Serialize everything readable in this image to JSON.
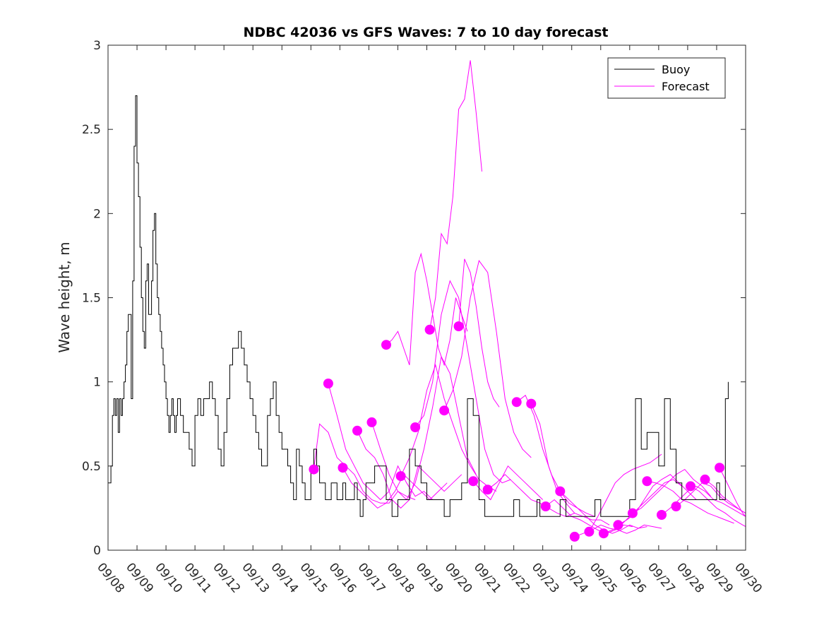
{
  "chart_data": {
    "type": "line",
    "title": "NDBC 42036 vs GFS Waves: 7 to 10 day forecast",
    "xlabel": "",
    "ylabel": "Wave height, m",
    "xlim": [
      0,
      22
    ],
    "ylim": [
      0,
      3
    ],
    "x_tick_labels": [
      "09/08",
      "09/09",
      "09/10",
      "09/11",
      "09/12",
      "09/13",
      "09/14",
      "09/15",
      "09/16",
      "09/17",
      "09/18",
      "09/19",
      "09/20",
      "09/21",
      "09/22",
      "09/23",
      "09/24",
      "09/25",
      "09/26",
      "09/27",
      "09/28",
      "09/29",
      "09/30"
    ],
    "y_ticks": [
      0,
      0.5,
      1,
      1.5,
      2,
      2.5,
      3
    ],
    "y_tick_labels": [
      "0",
      "0.5",
      "1",
      "1.5",
      "2",
      "2.5",
      "3"
    ],
    "legend": {
      "position": "top-right",
      "entries": [
        {
          "label": "Buoy",
          "color": "#000000"
        },
        {
          "label": "Forecast",
          "color": "#ff00ff"
        }
      ]
    },
    "buoy": {
      "name": "Buoy",
      "color": "#000000",
      "x": [
        0,
        0.1,
        0.15,
        0.2,
        0.25,
        0.3,
        0.35,
        0.4,
        0.45,
        0.5,
        0.55,
        0.6,
        0.65,
        0.7,
        0.8,
        0.85,
        0.9,
        0.95,
        1.0,
        1.05,
        1.1,
        1.15,
        1.2,
        1.25,
        1.3,
        1.35,
        1.4,
        1.5,
        1.55,
        1.6,
        1.65,
        1.7,
        1.75,
        1.8,
        1.85,
        1.9,
        1.95,
        2.0,
        2.05,
        2.1,
        2.15,
        2.2,
        2.25,
        2.3,
        2.35,
        2.4,
        2.5,
        2.6,
        2.7,
        2.8,
        2.9,
        3.0,
        3.1,
        3.2,
        3.3,
        3.4,
        3.5,
        3.6,
        3.7,
        3.8,
        3.9,
        4.0,
        4.1,
        4.2,
        4.3,
        4.4,
        4.5,
        4.6,
        4.7,
        4.8,
        4.9,
        5.0,
        5.1,
        5.2,
        5.3,
        5.4,
        5.5,
        5.6,
        5.7,
        5.8,
        5.9,
        6.0,
        6.1,
        6.2,
        6.3,
        6.4,
        6.5,
        6.6,
        6.7,
        6.8,
        6.9,
        7.0,
        7.1,
        7.2,
        7.3,
        7.4,
        7.5,
        7.6,
        7.7,
        7.8,
        7.9,
        8.0,
        8.1,
        8.2,
        8.3,
        8.4,
        8.5,
        8.6,
        8.7,
        8.8,
        8.9,
        9.0,
        9.2,
        9.4,
        9.6,
        9.8,
        10.0,
        10.2,
        10.4,
        10.6,
        10.8,
        11.0,
        11.2,
        11.4,
        11.6,
        11.8,
        12.0,
        12.2,
        12.4,
        12.6,
        12.8,
        13.0,
        13.2,
        13.4,
        13.6,
        13.8,
        14.0,
        14.2,
        14.4,
        14.6,
        14.8,
        14.9,
        15.0,
        15.2,
        15.4,
        15.6,
        15.8,
        16.0,
        16.2,
        16.4,
        16.6,
        16.8,
        17.0,
        17.2,
        17.4,
        17.6,
        17.8,
        17.9,
        18.0,
        18.2,
        18.4,
        18.6,
        18.8,
        19.0,
        19.2,
        19.4,
        19.6,
        19.8,
        20.0,
        20.2,
        20.4,
        20.6,
        20.8,
        21.0,
        21.1,
        21.2,
        21.3,
        21.4
      ],
      "y": [
        0.4,
        0.5,
        0.8,
        0.9,
        0.8,
        0.9,
        0.7,
        0.9,
        0.8,
        0.9,
        1.0,
        1.1,
        1.3,
        1.4,
        0.9,
        1.6,
        2.4,
        2.7,
        2.3,
        2.1,
        1.8,
        1.5,
        1.3,
        1.2,
        1.6,
        1.7,
        1.4,
        1.6,
        1.9,
        2.0,
        1.7,
        1.5,
        1.4,
        1.3,
        1.2,
        1.1,
        1.0,
        0.9,
        0.8,
        0.7,
        0.8,
        0.9,
        0.8,
        0.7,
        0.8,
        0.9,
        0.8,
        0.7,
        0.7,
        0.6,
        0.5,
        0.8,
        0.9,
        0.8,
        0.9,
        0.9,
        1.0,
        0.9,
        0.8,
        0.6,
        0.5,
        0.7,
        0.9,
        1.1,
        1.2,
        1.2,
        1.3,
        1.2,
        1.1,
        1.0,
        0.9,
        0.8,
        0.7,
        0.6,
        0.5,
        0.5,
        0.8,
        0.9,
        1.0,
        0.8,
        0.7,
        0.6,
        0.6,
        0.5,
        0.4,
        0.3,
        0.6,
        0.5,
        0.4,
        0.3,
        0.3,
        0.5,
        0.6,
        0.5,
        0.4,
        0.4,
        0.3,
        0.3,
        0.4,
        0.4,
        0.3,
        0.3,
        0.4,
        0.3,
        0.3,
        0.3,
        0.4,
        0.3,
        0.2,
        0.3,
        0.4,
        0.4,
        0.5,
        0.5,
        0.3,
        0.2,
        0.3,
        0.3,
        0.6,
        0.5,
        0.4,
        0.3,
        0.3,
        0.3,
        0.2,
        0.3,
        0.3,
        0.4,
        0.9,
        0.8,
        0.3,
        0.2,
        0.2,
        0.2,
        0.2,
        0.2,
        0.3,
        0.2,
        0.2,
        0.2,
        0.3,
        0.2,
        0.2,
        0.2,
        0.2,
        0.3,
        0.2,
        0.2,
        0.2,
        0.2,
        0.2,
        0.3,
        0.2,
        0.2,
        0.2,
        0.2,
        0.2,
        0.2,
        0.3,
        0.9,
        0.6,
        0.7,
        0.7,
        0.5,
        0.9,
        0.6,
        0.4,
        0.3,
        0.3,
        0.3,
        0.3,
        0.3,
        0.3,
        0.4,
        0.3,
        0.3,
        0.9,
        1.0
      ]
    },
    "forecast": {
      "name": "Forecast",
      "color": "#ff00ff",
      "series": [
        {
          "x": [
            7.1,
            7.3,
            7.6,
            7.9,
            8.2,
            8.5,
            8.8,
            9.1,
            9.4,
            9.7,
            10.0,
            10.3,
            10.6
          ],
          "y": [
            0.48,
            0.75,
            0.7,
            0.55,
            0.5,
            0.45,
            0.35,
            0.3,
            0.28,
            0.28,
            0.35,
            0.32,
            0.3
          ]
        },
        {
          "x": [
            7.6,
            7.9,
            8.2,
            8.5,
            8.8,
            9.1,
            9.4,
            9.7,
            10.0,
            10.3,
            10.6,
            10.9,
            11.2
          ],
          "y": [
            0.99,
            0.8,
            0.6,
            0.5,
            0.4,
            0.35,
            0.3,
            0.35,
            0.5,
            0.4,
            0.32,
            0.35,
            0.3
          ]
        },
        {
          "x": [
            8.1,
            8.4,
            8.7,
            9.0,
            9.3,
            9.6,
            9.9,
            10.2,
            10.5,
            10.8,
            11.1,
            11.4,
            11.7
          ],
          "y": [
            0.49,
            0.4,
            0.35,
            0.3,
            0.25,
            0.28,
            0.35,
            0.45,
            0.4,
            0.35,
            0.3,
            0.35,
            0.4
          ]
        },
        {
          "x": [
            8.6,
            8.9,
            9.2,
            9.5,
            9.8,
            10.1,
            10.4,
            10.7,
            11.0,
            11.3,
            11.6,
            11.9,
            12.2
          ],
          "y": [
            0.71,
            0.6,
            0.55,
            0.45,
            0.3,
            0.25,
            0.3,
            0.5,
            0.45,
            0.4,
            0.35,
            0.4,
            0.45
          ]
        },
        {
          "x": [
            9.1,
            9.4,
            9.7,
            10.0,
            10.3,
            10.6,
            10.9,
            11.2,
            11.5,
            11.8,
            12.1,
            12.4,
            12.7
          ],
          "y": [
            0.76,
            0.6,
            0.45,
            0.35,
            0.3,
            0.4,
            0.6,
            0.85,
            1.15,
            1.05,
            0.8,
            0.55,
            0.45
          ]
        },
        {
          "x": [
            9.6,
            9.8,
            10.0,
            10.2,
            10.4,
            10.6,
            10.8,
            11.0,
            11.2,
            11.4,
            11.6,
            11.8,
            12.0,
            12.2,
            12.4
          ],
          "y": [
            1.22,
            1.25,
            1.3,
            1.2,
            1.1,
            1.65,
            1.76,
            1.6,
            1.4,
            1.2,
            1.1,
            1.25,
            1.5,
            1.4,
            1.3
          ]
        },
        {
          "x": [
            10.1,
            10.4,
            10.7,
            11.0,
            11.3,
            11.6,
            11.9,
            12.2,
            12.5,
            12.8,
            13.1,
            13.4
          ],
          "y": [
            0.44,
            0.55,
            0.7,
            0.95,
            1.1,
            0.9,
            0.75,
            0.6,
            0.5,
            0.42,
            0.38,
            0.35
          ]
        },
        {
          "x": [
            10.6,
            10.9,
            11.2,
            11.5,
            11.8,
            12.1,
            12.4,
            12.7,
            13.0,
            13.3,
            13.6,
            13.9
          ],
          "y": [
            0.73,
            0.8,
            1.0,
            1.4,
            1.6,
            1.5,
            1.2,
            0.9,
            0.6,
            0.45,
            0.4,
            0.42
          ]
        },
        {
          "x": [
            11.1,
            11.3,
            11.5,
            11.7,
            11.9,
            12.1,
            12.3,
            12.5,
            12.7,
            12.9
          ],
          "y": [
            1.31,
            1.5,
            1.88,
            1.82,
            2.1,
            2.62,
            2.68,
            2.91,
            2.6,
            2.25
          ]
        },
        {
          "x": [
            11.6,
            11.9,
            12.2,
            12.5,
            12.8,
            13.1,
            13.4,
            13.7,
            14.0,
            14.3,
            14.6
          ],
          "y": [
            0.83,
            0.95,
            1.15,
            1.5,
            1.72,
            1.65,
            1.3,
            0.9,
            0.7,
            0.6,
            0.55
          ]
        },
        {
          "x": [
            12.1,
            12.3,
            12.5,
            12.7,
            12.9,
            13.1,
            13.3,
            13.5
          ],
          "y": [
            1.33,
            1.73,
            1.65,
            1.45,
            1.2,
            1.0,
            0.9,
            0.85
          ]
        },
        {
          "x": [
            12.6,
            12.9,
            13.2,
            13.5,
            13.8,
            14.1,
            14.4,
            14.7,
            15.0
          ],
          "y": [
            0.41,
            0.35,
            0.3,
            0.4,
            0.5,
            0.45,
            0.4,
            0.35,
            0.3
          ]
        },
        {
          "x": [
            13.1,
            13.4,
            13.7,
            14.0,
            14.3,
            14.6,
            14.9,
            15.2,
            15.5,
            15.8,
            16.1
          ],
          "y": [
            0.36,
            0.4,
            0.45,
            0.4,
            0.35,
            0.3,
            0.28,
            0.25,
            0.22,
            0.2,
            0.22
          ]
        },
        {
          "x": [
            14.1,
            14.4,
            14.7,
            15.0,
            15.3,
            15.6,
            15.9,
            16.2,
            16.5,
            16.8
          ],
          "y": [
            0.88,
            0.92,
            0.8,
            0.6,
            0.45,
            0.35,
            0.28,
            0.25,
            0.22,
            0.2
          ]
        },
        {
          "x": [
            14.6,
            14.9,
            15.2,
            15.5,
            15.8,
            16.1,
            16.4,
            16.7,
            17.0,
            17.3
          ],
          "y": [
            0.87,
            0.75,
            0.5,
            0.35,
            0.28,
            0.22,
            0.2,
            0.18,
            0.18,
            0.15
          ]
        },
        {
          "x": [
            15.1,
            15.4,
            15.7,
            16.0,
            16.3,
            16.6,
            16.9,
            17.2,
            17.5,
            17.8,
            18.1
          ],
          "y": [
            0.26,
            0.3,
            0.25,
            0.2,
            0.18,
            0.15,
            0.12,
            0.1,
            0.12,
            0.15,
            0.14
          ]
        },
        {
          "x": [
            15.6,
            15.9,
            16.2,
            16.5,
            16.8,
            17.1,
            17.4,
            17.7,
            18.0,
            18.3,
            18.6
          ],
          "y": [
            0.35,
            0.3,
            0.25,
            0.2,
            0.15,
            0.12,
            0.1,
            0.12,
            0.15,
            0.13,
            0.14
          ]
        },
        {
          "x": [
            16.1,
            16.4,
            16.7,
            17.0,
            17.3,
            17.6,
            17.9,
            18.2,
            18.5,
            18.8,
            19.1
          ],
          "y": [
            0.08,
            0.1,
            0.12,
            0.15,
            0.13,
            0.12,
            0.1,
            0.12,
            0.15,
            0.14,
            0.13
          ]
        },
        {
          "x": [
            16.6,
            16.9,
            17.2,
            17.5,
            17.8,
            18.1,
            18.4,
            18.7,
            19.1
          ],
          "y": [
            0.11,
            0.2,
            0.3,
            0.4,
            0.45,
            0.48,
            0.5,
            0.52,
            0.57
          ]
        },
        {
          "x": [
            17.1,
            17.4,
            17.7,
            18.0,
            18.3,
            18.6,
            18.9,
            19.2,
            19.5,
            19.8
          ],
          "y": [
            0.1,
            0.12,
            0.15,
            0.2,
            0.25,
            0.3,
            0.35,
            0.4,
            0.42,
            0.38
          ]
        },
        {
          "x": [
            17.6,
            17.9,
            18.2,
            18.5,
            18.8,
            19.1,
            19.4,
            19.7,
            20.0,
            20.3
          ],
          "y": [
            0.15,
            0.18,
            0.22,
            0.3,
            0.38,
            0.42,
            0.45,
            0.4,
            0.35,
            0.3
          ]
        },
        {
          "x": [
            18.1,
            18.4,
            18.7,
            19.0,
            19.3,
            19.6,
            19.9,
            20.2,
            20.5,
            20.8
          ],
          "y": [
            0.22,
            0.25,
            0.3,
            0.35,
            0.4,
            0.45,
            0.48,
            0.42,
            0.38,
            0.32
          ]
        },
        {
          "x": [
            18.6,
            18.9,
            19.2,
            19.5,
            19.8,
            20.1,
            20.4,
            20.7,
            21.0,
            21.3,
            21.6
          ],
          "y": [
            0.41,
            0.4,
            0.38,
            0.35,
            0.3,
            0.28,
            0.25,
            0.22,
            0.2,
            0.18,
            0.16
          ]
        },
        {
          "x": [
            19.1,
            19.4,
            19.7,
            20.0,
            20.3,
            20.6,
            20.9,
            21.2,
            21.5,
            21.8,
            22.0
          ],
          "y": [
            0.21,
            0.25,
            0.3,
            0.35,
            0.38,
            0.35,
            0.3,
            0.28,
            0.25,
            0.22,
            0.2
          ]
        },
        {
          "x": [
            19.6,
            19.9,
            20.2,
            20.5,
            20.8,
            21.1,
            21.4,
            21.7,
            22.0
          ],
          "y": [
            0.26,
            0.3,
            0.35,
            0.4,
            0.38,
            0.32,
            0.28,
            0.25,
            0.22
          ]
        },
        {
          "x": [
            20.1,
            20.4,
            20.7,
            21.0,
            21.3,
            21.6,
            21.9,
            22.0
          ],
          "y": [
            0.38,
            0.35,
            0.3,
            0.25,
            0.22,
            0.18,
            0.15,
            0.14
          ]
        },
        {
          "x": [
            20.6,
            20.9,
            21.2,
            21.5,
            21.8,
            22.0
          ],
          "y": [
            0.42,
            0.38,
            0.32,
            0.28,
            0.24,
            0.22
          ]
        },
        {
          "x": [
            21.1,
            21.3,
            21.5,
            21.7,
            21.9,
            22.0
          ],
          "y": [
            0.49,
            0.42,
            0.35,
            0.28,
            0.22,
            0.2
          ]
        }
      ]
    }
  }
}
